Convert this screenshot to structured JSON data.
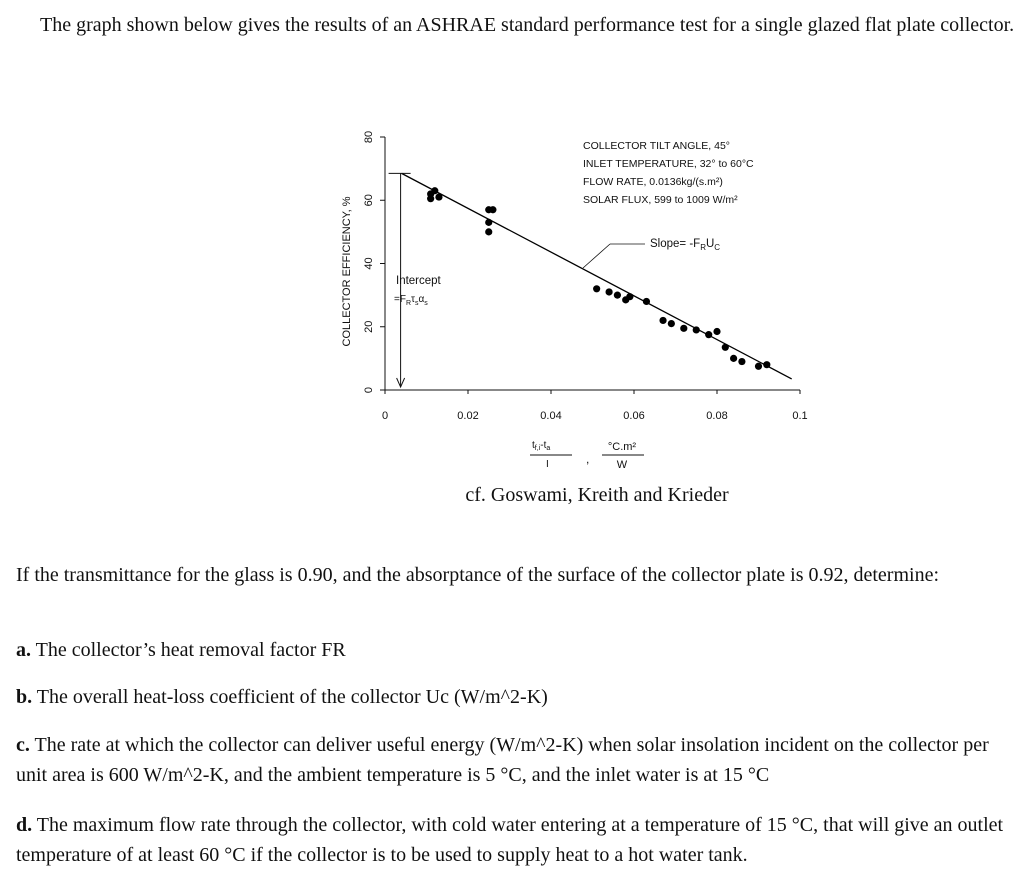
{
  "intro": "The graph shown below gives the results of an ASHRAE standard performance test for a single glazed flat plate collector.",
  "chart_data": {
    "type": "scatter",
    "ylabel": "COLLECTOR EFFICIENCY, %",
    "xlabel": {
      "numerator": [
        "t",
        "f,i",
        "-t",
        "a"
      ],
      "denominator": "I",
      "separator": ",",
      "unit_numerator": "°C.m²",
      "unit_denominator": "W"
    },
    "annotations": [
      "COLLECTOR TILT ANGLE, 45°",
      "INLET TEMPERATURE, 32° to 60°C",
      "FLOW RATE, 0.0136kg/(s.m²)",
      "SOLAR FLUX, 599 to 1009 W/m²"
    ],
    "slope_label": [
      "Slope= -F",
      "R",
      "U",
      "C"
    ],
    "intercept_label": [
      "Intercept",
      "=F",
      "R",
      "τ",
      "s",
      "α",
      "s"
    ],
    "x": [
      0.011,
      0.012,
      0.013,
      0.011,
      0.025,
      0.026,
      0.025,
      0.025,
      0.051,
      0.054,
      0.056,
      0.058,
      0.059,
      0.063,
      0.067,
      0.069,
      0.072,
      0.075,
      0.078,
      0.08,
      0.082,
      0.084,
      0.086,
      0.09,
      0.092
    ],
    "values": [
      62,
      63,
      61,
      60.5,
      57,
      57,
      53,
      50,
      32,
      31,
      30,
      28.5,
      29.5,
      28,
      22,
      21,
      19.5,
      19,
      17.5,
      18.5,
      13.5,
      10,
      9,
      7.5,
      8
    ],
    "fit_line": {
      "x": [
        0.004,
        0.098
      ],
      "values": [
        68.5,
        3.5
      ]
    },
    "color": "#000000",
    "xlim": [
      0,
      0.1
    ],
    "ylim": [
      0,
      80
    ],
    "xticks": [
      0,
      0.02,
      0.04,
      0.06,
      0.08,
      0.1
    ],
    "yticks": [
      0,
      20,
      40,
      60,
      80
    ]
  },
  "caption": "cf. Goswami, Kreith and Krieder",
  "question": "If the transmittance for the glass is 0.90, and the absorptance of the surface of the collector plate is 0.92, determine:",
  "parts": [
    {
      "label": "a.",
      "text": "The collector’s heat removal factor FR"
    },
    {
      "label": "b.",
      "text": "The overall heat-loss coefficient of the collector Uc (W/m^2-K)"
    },
    {
      "label": "c.",
      "text": "The rate at which the collector can deliver useful energy (W/m^2-K) when solar insolation incident on the collector per unit area is 600 W/m^2-K, and the ambient temperature is 5 °C, and the inlet water is at 15 °C"
    },
    {
      "label": "d.",
      "text": "The maximum flow rate through the collector, with cold water entering at a temperature of 15 °C, that will give an outlet temperature of at least 60 °C if the collector is to be used to supply heat to a hot water tank."
    }
  ]
}
